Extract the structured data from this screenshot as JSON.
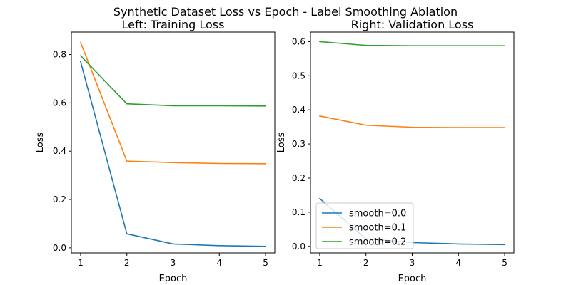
{
  "figure": {
    "suptitle": "Synthetic Dataset Loss vs Epoch - Label Smoothing Ablation"
  },
  "chart_data": [
    {
      "type": "line",
      "title": "Left: Training Loss",
      "xlabel": "Epoch",
      "ylabel": "Loss",
      "x": [
        1,
        2,
        3,
        4,
        5
      ],
      "xlim": [
        0.8,
        5.2
      ],
      "ylim": [
        -0.021,
        0.893
      ],
      "xticks": [
        1,
        2,
        3,
        4,
        5
      ],
      "yticks": [
        0.0,
        0.2,
        0.4,
        0.6,
        0.8
      ],
      "ytick_labels": [
        "0.0",
        "0.2",
        "0.4",
        "0.6",
        "0.8"
      ],
      "grid": false,
      "legend": null,
      "series": [
        {
          "name": "smooth=0.0",
          "color": "#1f77b4",
          "values": [
            0.77,
            0.058,
            0.016,
            0.009,
            0.006
          ]
        },
        {
          "name": "smooth=0.1",
          "color": "#ff7f0e",
          "values": [
            0.85,
            0.359,
            0.353,
            0.349,
            0.348
          ]
        },
        {
          "name": "smooth=0.2",
          "color": "#2ca02c",
          "values": [
            0.795,
            0.596,
            0.588,
            0.588,
            0.587
          ]
        }
      ]
    },
    {
      "type": "line",
      "title": "Right: Validation Loss",
      "xlabel": "Epoch",
      "ylabel": "Loss",
      "x": [
        1,
        2,
        3,
        4,
        5
      ],
      "xlim": [
        0.8,
        5.2
      ],
      "ylim": [
        -0.0193,
        0.628
      ],
      "xticks": [
        1,
        2,
        3,
        4,
        5
      ],
      "yticks": [
        0.0,
        0.1,
        0.2,
        0.3,
        0.4,
        0.5,
        0.6
      ],
      "ytick_labels": [
        "0.0",
        "0.1",
        "0.2",
        "0.3",
        "0.4",
        "0.5",
        "0.6"
      ],
      "grid": false,
      "legend": "lower-left",
      "series": [
        {
          "name": "smooth=0.0",
          "color": "#1f77b4",
          "values": [
            0.14,
            0.022,
            0.011,
            0.007,
            0.005
          ]
        },
        {
          "name": "smooth=0.1",
          "color": "#ff7f0e",
          "values": [
            0.382,
            0.355,
            0.349,
            0.348,
            0.348
          ]
        },
        {
          "name": "smooth=0.2",
          "color": "#2ca02c",
          "values": [
            0.6,
            0.589,
            0.588,
            0.588,
            0.588
          ]
        }
      ]
    }
  ]
}
